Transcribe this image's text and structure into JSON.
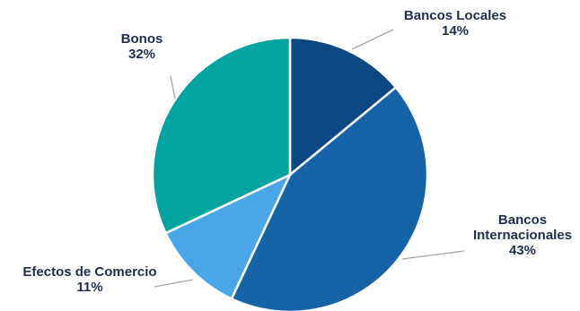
{
  "chart_data": {
    "type": "pie",
    "title": "",
    "slices": [
      {
        "name": "Bancos Locales",
        "value": 14,
        "label_lines": [
          "Bancos Locales"
        ],
        "pct_label": "14%",
        "color": "#0a4783"
      },
      {
        "name": "Bancos Internacionales",
        "value": 43,
        "label_lines": [
          "Bancos",
          "Internacionales"
        ],
        "pct_label": "43%",
        "color": "#1763a7"
      },
      {
        "name": "Efectos de Comercio",
        "value": 11,
        "label_lines": [
          "Efectos de Comercio"
        ],
        "pct_label": "11%",
        "color": "#4aa6e6"
      },
      {
        "name": "Bonos",
        "value": 32,
        "label_lines": [
          "Bonos"
        ],
        "pct_label": "32%",
        "color": "#02a3a0"
      }
    ],
    "legend": "none",
    "start_angle": "12 o'clock",
    "direction": "clockwise"
  }
}
